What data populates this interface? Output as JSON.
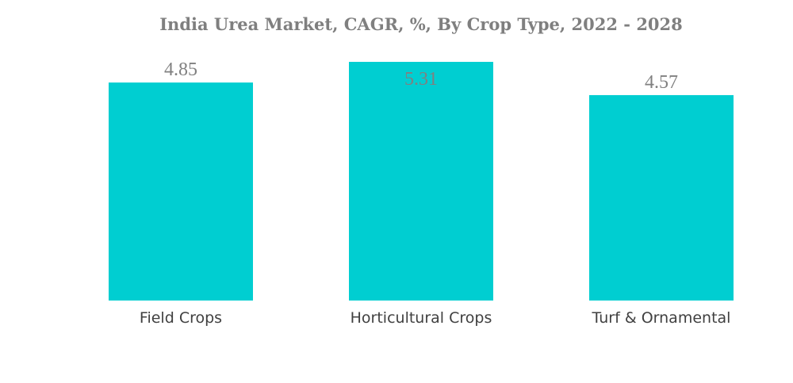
{
  "chart_data": {
    "type": "bar",
    "title": "India Urea Market, CAGR, %, By Crop Type, 2022 - 2028",
    "xlabel": "",
    "ylabel": "",
    "categories": [
      "Field Crops",
      "Horticultural Crops",
      "Turf & Ornamental"
    ],
    "values": [
      4.85,
      5.31,
      4.57
    ],
    "value_labels": [
      "4.85",
      "5.31",
      "4.57"
    ],
    "bar_color": "#00CED1",
    "grid": false,
    "legend": "none"
  }
}
